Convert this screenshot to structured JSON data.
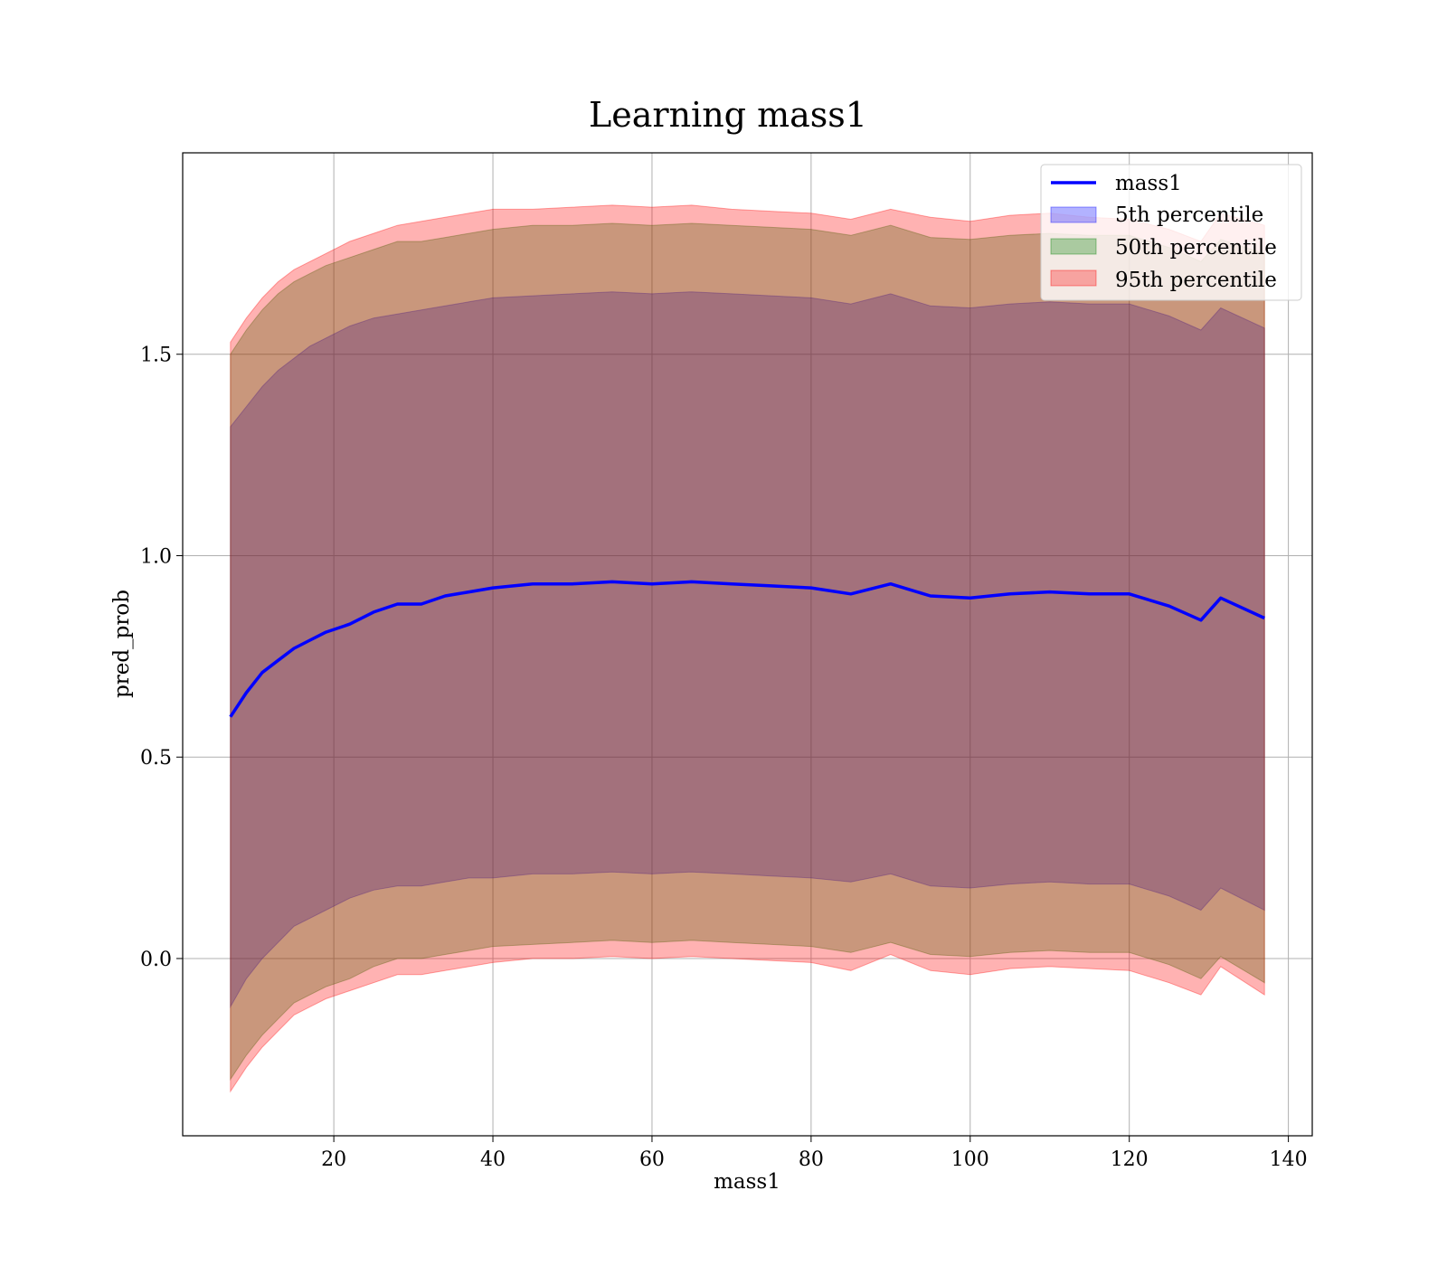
{
  "chart_data": {
    "type": "area",
    "title": "Learning mass1",
    "xlabel": "mass1",
    "ylabel": "pred_prob",
    "xlim": [
      1,
      143
    ],
    "ylim": [
      -0.44,
      2.0
    ],
    "xticks": [
      20,
      40,
      60,
      80,
      100,
      120,
      140
    ],
    "yticks": [
      0.0,
      0.5,
      1.0,
      1.5
    ],
    "xtick_labels": [
      "20",
      "40",
      "60",
      "80",
      "100",
      "120",
      "140"
    ],
    "ytick_labels": [
      "0.0",
      "0.5",
      "1.0",
      "1.5"
    ],
    "grid": true,
    "legend_position": "top-right",
    "legend": [
      {
        "label": "mass1",
        "kind": "line",
        "color": "#0000ff"
      },
      {
        "label": "5th percentile",
        "kind": "patch",
        "color": "#0000ff"
      },
      {
        "label": "50th percentile",
        "kind": "patch",
        "color": "#008000"
      },
      {
        "label": "95th percentile",
        "kind": "patch",
        "color": "#ff0000"
      }
    ],
    "x": [
      7,
      9,
      11,
      13,
      15,
      17,
      19,
      22,
      25,
      28,
      31,
      34,
      37,
      40,
      45,
      50,
      55,
      60,
      65,
      70,
      75,
      80,
      85,
      90,
      95,
      100,
      105,
      110,
      115,
      120,
      125,
      129,
      131.5,
      137
    ],
    "mean_line": {
      "name": "mass1",
      "color": "#0000ff",
      "values": [
        0.6,
        0.66,
        0.71,
        0.74,
        0.77,
        0.79,
        0.81,
        0.83,
        0.86,
        0.88,
        0.88,
        0.9,
        0.91,
        0.92,
        0.93,
        0.93,
        0.935,
        0.93,
        0.935,
        0.93,
        0.925,
        0.92,
        0.905,
        0.93,
        0.9,
        0.895,
        0.905,
        0.91,
        0.905,
        0.905,
        0.875,
        0.84,
        0.895,
        0.845
      ]
    },
    "series": [
      {
        "name": "5th percentile",
        "color": "#0000ff",
        "opacity": 0.3,
        "lower": [
          -0.12,
          -0.05,
          0.0,
          0.04,
          0.08,
          0.1,
          0.12,
          0.15,
          0.17,
          0.18,
          0.18,
          0.19,
          0.2,
          0.2,
          0.21,
          0.21,
          0.215,
          0.21,
          0.215,
          0.21,
          0.205,
          0.2,
          0.19,
          0.21,
          0.18,
          0.175,
          0.185,
          0.19,
          0.185,
          0.185,
          0.155,
          0.12,
          0.175,
          0.12
        ],
        "upper": [
          1.32,
          1.37,
          1.42,
          1.46,
          1.49,
          1.52,
          1.54,
          1.57,
          1.59,
          1.6,
          1.61,
          1.62,
          1.63,
          1.64,
          1.645,
          1.65,
          1.655,
          1.65,
          1.655,
          1.65,
          1.645,
          1.64,
          1.625,
          1.65,
          1.62,
          1.615,
          1.625,
          1.63,
          1.625,
          1.625,
          1.595,
          1.56,
          1.615,
          1.565
        ]
      },
      {
        "name": "50th percentile",
        "color": "#008000",
        "opacity": 0.3,
        "lower": [
          -0.3,
          -0.24,
          -0.19,
          -0.15,
          -0.11,
          -0.09,
          -0.07,
          -0.05,
          -0.02,
          0.0,
          0.0,
          0.01,
          0.02,
          0.03,
          0.035,
          0.04,
          0.045,
          0.04,
          0.045,
          0.04,
          0.035,
          0.03,
          0.015,
          0.04,
          0.01,
          0.005,
          0.015,
          0.02,
          0.015,
          0.015,
          -0.015,
          -0.05,
          0.005,
          -0.06
        ],
        "upper": [
          1.5,
          1.56,
          1.61,
          1.65,
          1.68,
          1.7,
          1.72,
          1.74,
          1.76,
          1.78,
          1.78,
          1.79,
          1.8,
          1.81,
          1.82,
          1.82,
          1.825,
          1.82,
          1.825,
          1.82,
          1.815,
          1.81,
          1.795,
          1.82,
          1.79,
          1.785,
          1.795,
          1.8,
          1.795,
          1.795,
          1.765,
          1.73,
          1.785,
          1.75
        ]
      },
      {
        "name": "95th percentile",
        "color": "#ff0000",
        "opacity": 0.3,
        "lower": [
          -0.33,
          -0.27,
          -0.22,
          -0.18,
          -0.14,
          -0.12,
          -0.1,
          -0.08,
          -0.06,
          -0.04,
          -0.04,
          -0.03,
          -0.02,
          -0.01,
          0.0,
          0.0,
          0.005,
          0.0,
          0.005,
          0.0,
          -0.005,
          -0.01,
          -0.03,
          0.01,
          -0.03,
          -0.04,
          -0.025,
          -0.02,
          -0.025,
          -0.03,
          -0.06,
          -0.09,
          -0.02,
          -0.09
        ],
        "upper": [
          1.53,
          1.59,
          1.64,
          1.68,
          1.71,
          1.73,
          1.75,
          1.78,
          1.8,
          1.82,
          1.83,
          1.84,
          1.85,
          1.86,
          1.86,
          1.865,
          1.87,
          1.865,
          1.87,
          1.86,
          1.855,
          1.85,
          1.835,
          1.86,
          1.84,
          1.83,
          1.845,
          1.85,
          1.84,
          1.835,
          1.81,
          1.78,
          1.85,
          1.82
        ]
      }
    ]
  }
}
